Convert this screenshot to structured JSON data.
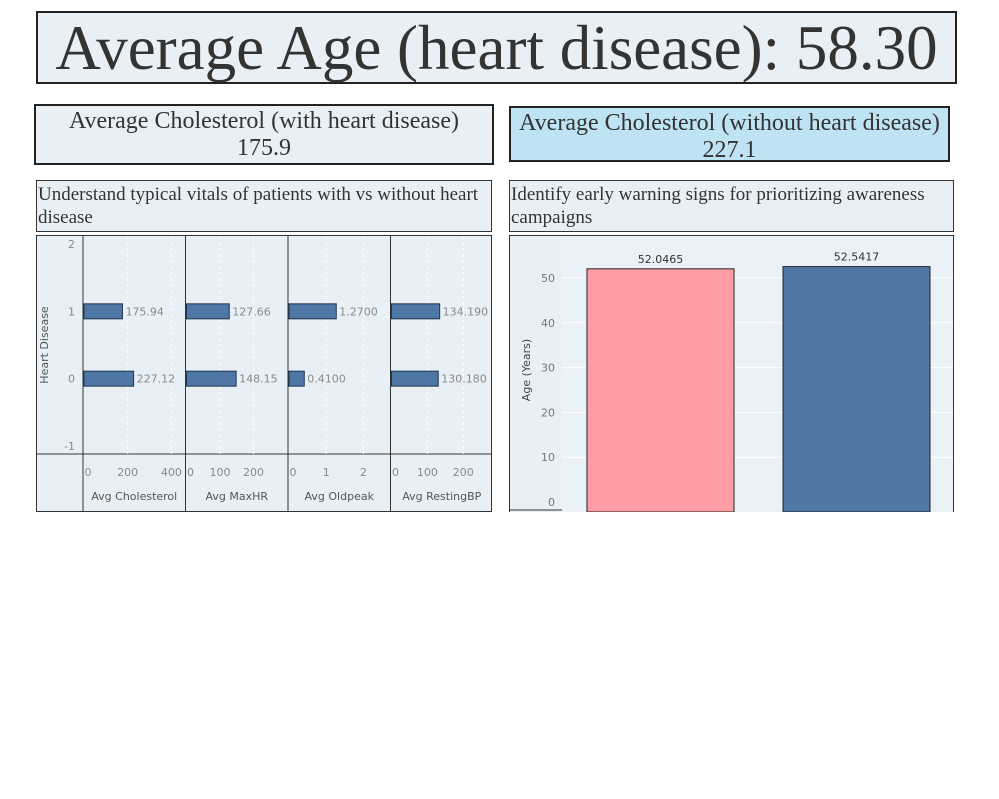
{
  "header": {
    "title": "Average Age (heart disease): 58.30"
  },
  "kpis": [
    {
      "label": "Average Cholesterol (with heart disease)",
      "value": "175.9"
    },
    {
      "label": "Average Cholesterol (without heart disease)",
      "value": "227.1"
    }
  ],
  "panels": {
    "left_subtitle": "Understand typical vitals of patients with vs without heart disease",
    "right_subtitle": "Identify early warning signs for prioritizing awareness campaigns"
  },
  "colors": {
    "bar_blue": "#4e77a5",
    "bar_pink": "#ff9da6",
    "panel_bg": "#e8f0f6",
    "kpi_highlight": "#bee3f2"
  },
  "chart_data": [
    {
      "type": "bar",
      "orientation": "horizontal",
      "ylabel": "Heart Disease",
      "y_categories": [
        "1",
        "0"
      ],
      "y_ticks": [
        "2",
        "1",
        "0",
        "-1"
      ],
      "panels": [
        {
          "xlabel": "Avg Cholesterol",
          "xlim": [
            0,
            460
          ],
          "ticks": [
            0,
            200,
            400
          ],
          "values": [
            175.94,
            227.12
          ],
          "labels": [
            "175.94",
            "227.12"
          ]
        },
        {
          "xlabel": "Avg MaxHR",
          "xlim": [
            0,
            300
          ],
          "ticks": [
            0,
            100,
            200
          ],
          "values": [
            127.66,
            148.15
          ],
          "labels": [
            "127.66",
            "148.15"
          ]
        },
        {
          "xlabel": "Avg Oldpeak",
          "xlim": [
            0,
            2.7
          ],
          "ticks": [
            0,
            1,
            2
          ],
          "values": [
            1.27,
            0.41
          ],
          "labels": [
            "1.2700",
            "0.4100"
          ]
        },
        {
          "xlabel": "Avg RestingBP",
          "xlim": [
            0,
            280
          ],
          "ticks": [
            0,
            100,
            200
          ],
          "values": [
            134.19,
            130.18
          ],
          "labels": [
            "134.190",
            "130.180"
          ]
        }
      ],
      "grid": true
    },
    {
      "type": "bar",
      "ylabel": "Age (Years)",
      "ylim": [
        0,
        56
      ],
      "y_ticks": [
        0,
        10,
        20,
        30,
        40,
        50
      ],
      "values": [
        52.0465,
        52.5417
      ],
      "labels": [
        "52.0465",
        "52.5417"
      ],
      "grid": true
    }
  ]
}
